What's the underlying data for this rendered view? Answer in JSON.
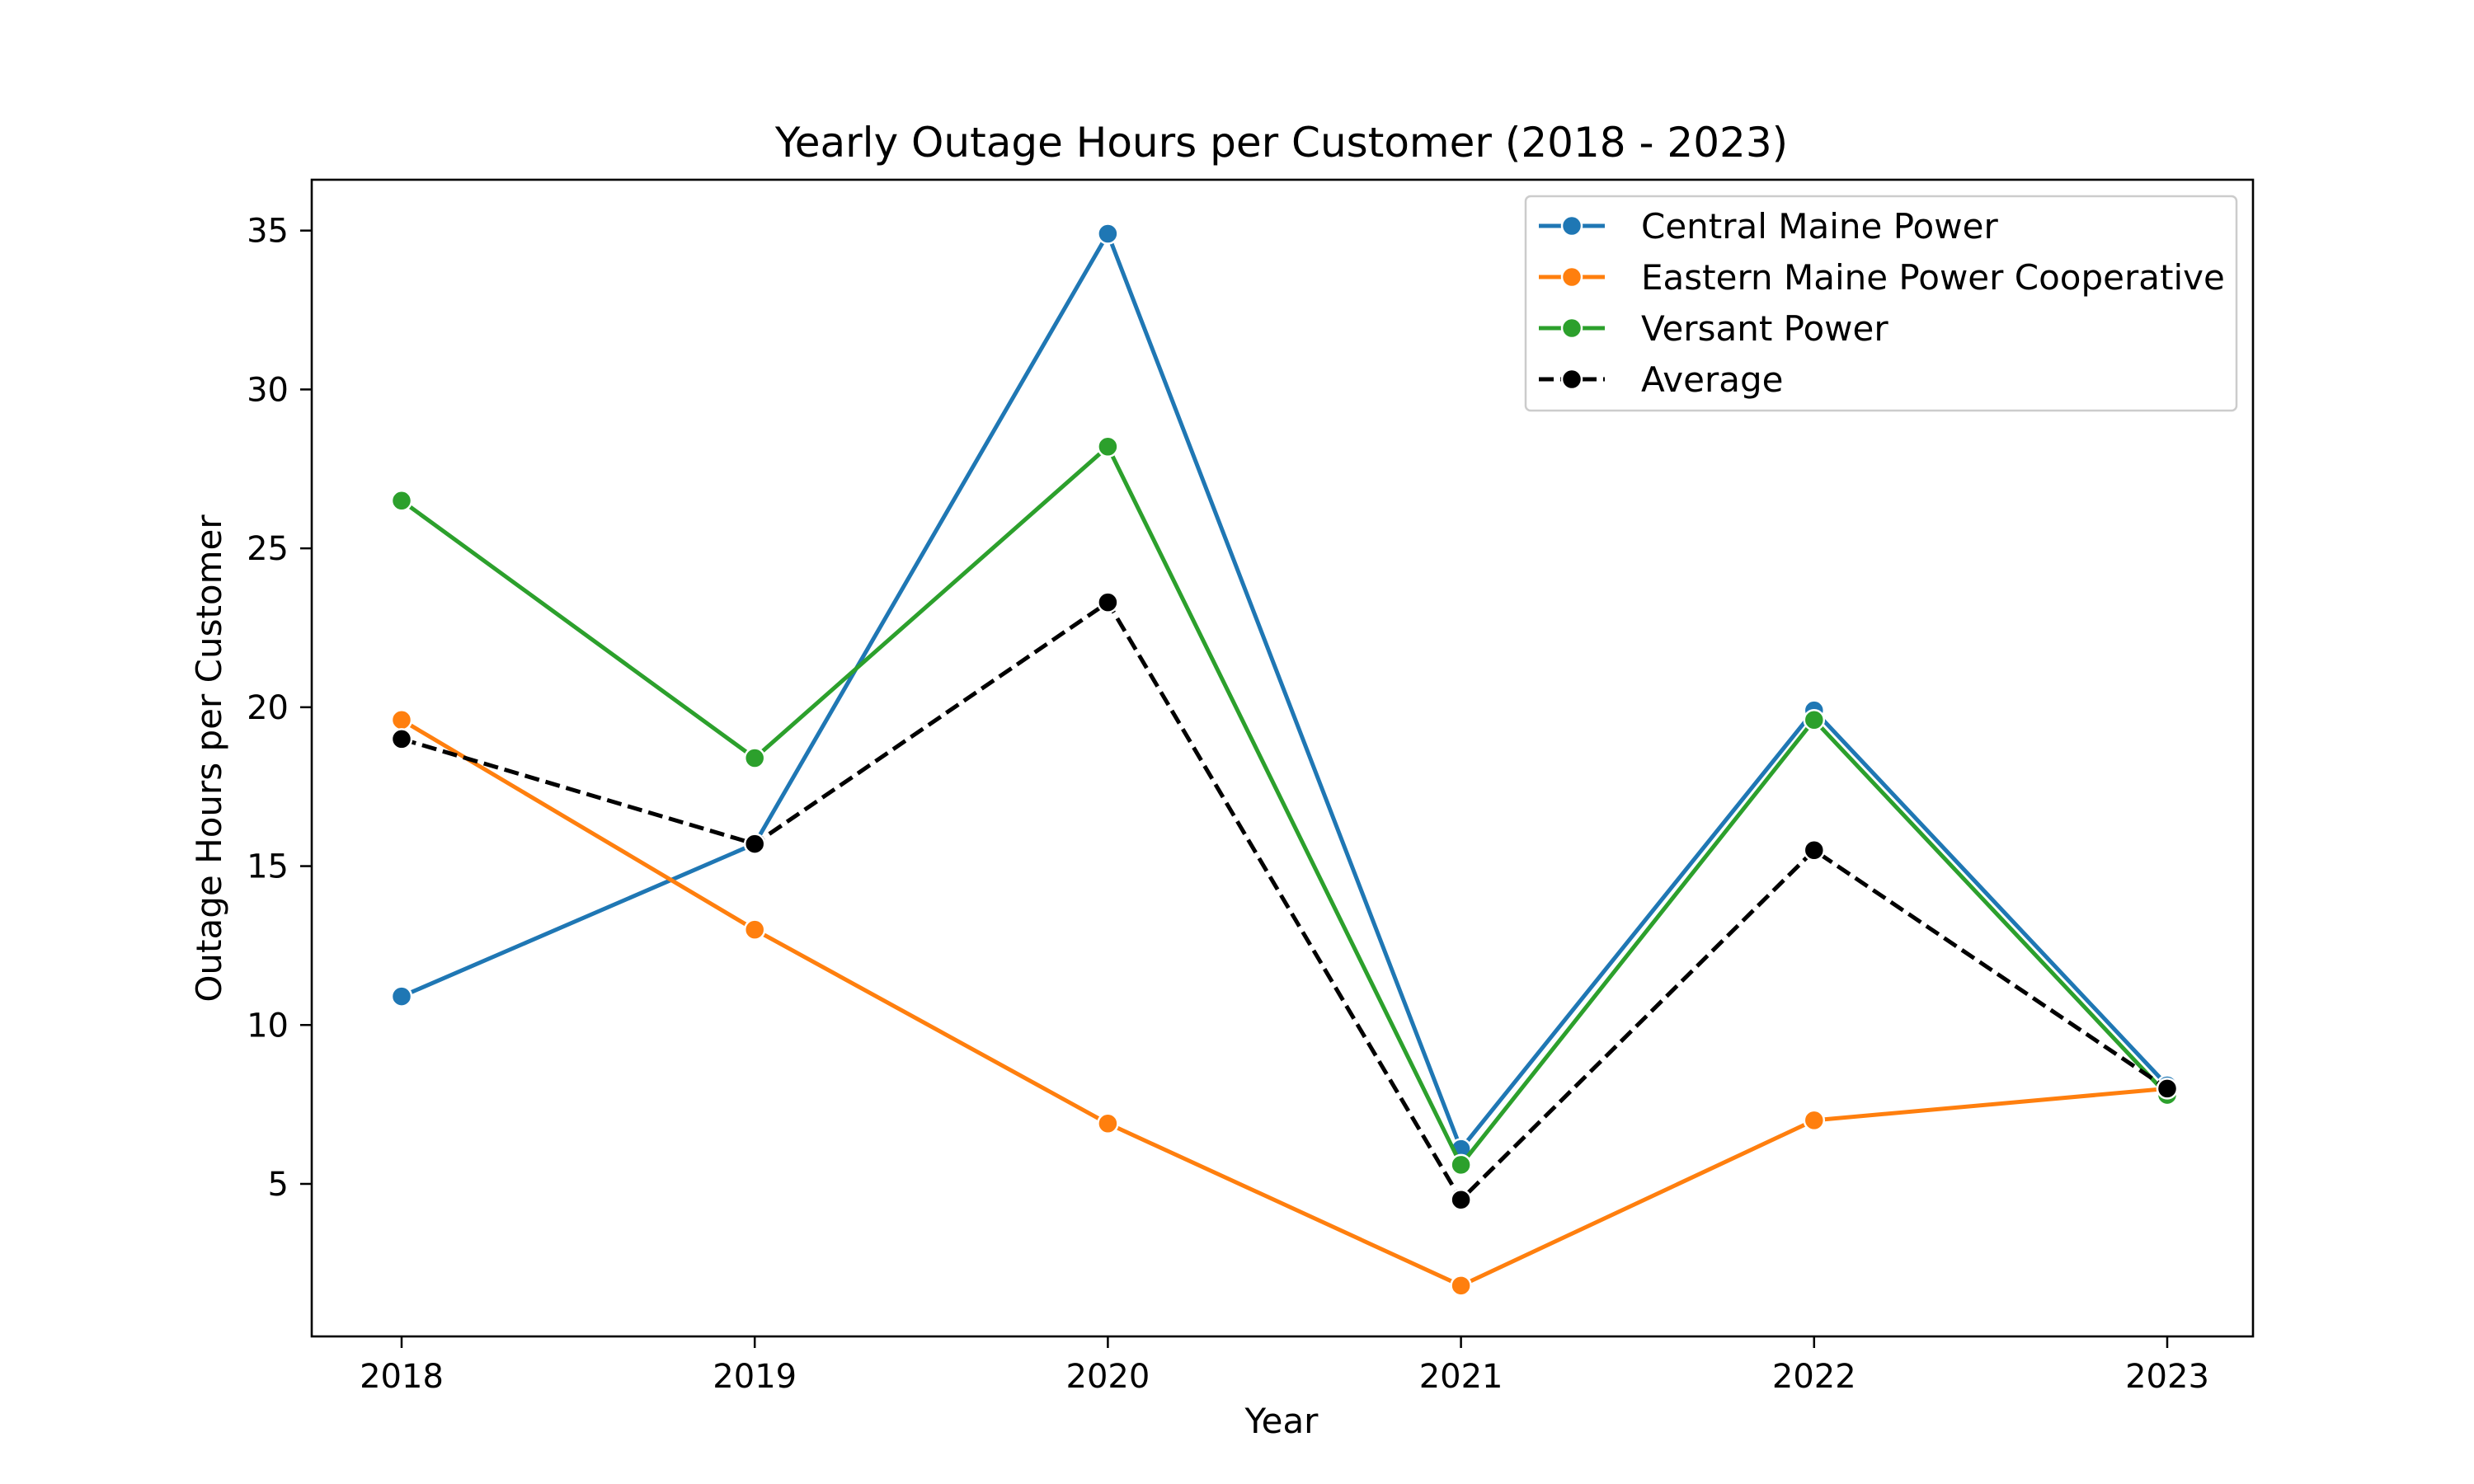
{
  "chart_data": {
    "type": "line",
    "title": "Yearly Outage Hours per Customer (2018 - 2023)",
    "xlabel": "Year",
    "ylabel": "Outage Hours per Customer",
    "x": [
      "2018",
      "2019",
      "2020",
      "2021",
      "2022",
      "2023"
    ],
    "ylim": [
      0.2,
      36.6
    ],
    "yticks": [
      "5",
      "10",
      "15",
      "20",
      "25",
      "30",
      "35"
    ],
    "grid": false,
    "legend_position": "top-right",
    "series": [
      {
        "name": "Central Maine Power",
        "color": "#1f77b4",
        "dashed": false,
        "values": [
          10.9,
          15.7,
          34.9,
          6.1,
          19.9,
          8.1
        ]
      },
      {
        "name": "Eastern Maine Power Cooperative",
        "color": "#ff7f0e",
        "dashed": false,
        "values": [
          19.6,
          13.0,
          6.9,
          1.8,
          7.0,
          8.0
        ]
      },
      {
        "name": "Versant Power",
        "color": "#2ca02c",
        "dashed": false,
        "values": [
          26.5,
          18.4,
          28.2,
          5.6,
          19.6,
          7.8
        ]
      },
      {
        "name": "Average",
        "color": "#000000",
        "dashed": true,
        "values": [
          19.0,
          15.7,
          23.3,
          4.5,
          15.5,
          8.0
        ]
      }
    ]
  }
}
